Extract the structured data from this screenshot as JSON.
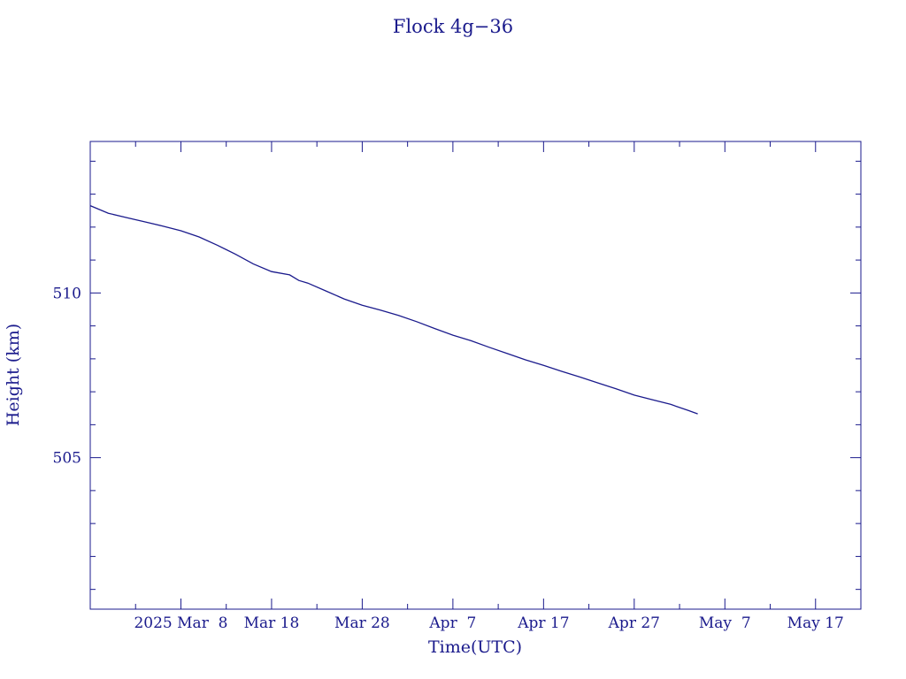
{
  "chart_data": {
    "type": "line",
    "title": "Flock 4g−36",
    "xlabel": "Time(UTC)",
    "ylabel": "Height (km)",
    "x_ticks": [
      "2025 Mar  8",
      "Mar 18",
      "Mar 28",
      "Apr  7",
      "Apr 17",
      "Apr 27",
      "May  7",
      "May 17"
    ],
    "x_tick_dates": [
      "2025-03-08",
      "2025-03-18",
      "2025-03-28",
      "2025-04-07",
      "2025-04-17",
      "2025-04-27",
      "2025-05-07",
      "2025-05-17"
    ],
    "xlim": [
      "2025-02-26",
      "2025-05-22"
    ],
    "y_ticks": [
      "505",
      "510"
    ],
    "y_tick_values": [
      505,
      510
    ],
    "ylim": [
      500.4,
      514.6
    ],
    "grid": false,
    "color": "#1a1a8c",
    "series": [
      {
        "x": [
          "2025-02-26",
          "2025-02-28",
          "2025-03-02",
          "2025-03-04",
          "2025-03-06",
          "2025-03-08",
          "2025-03-10",
          "2025-03-12",
          "2025-03-14",
          "2025-03-16",
          "2025-03-18",
          "2025-03-20",
          "2025-03-21",
          "2025-03-22",
          "2025-03-24",
          "2025-03-26",
          "2025-03-28",
          "2025-03-30",
          "2025-04-01",
          "2025-04-03",
          "2025-04-05",
          "2025-04-07",
          "2025-04-09",
          "2025-04-11",
          "2025-04-13",
          "2025-04-15",
          "2025-04-17",
          "2025-04-19",
          "2025-04-21",
          "2025-04-23",
          "2025-04-25",
          "2025-04-27",
          "2025-04-29",
          "2025-05-01",
          "2025-05-03",
          "2025-05-04"
        ],
        "values": [
          512.65,
          512.42,
          512.29,
          512.16,
          512.03,
          511.89,
          511.7,
          511.45,
          511.18,
          510.88,
          510.65,
          510.55,
          510.38,
          510.3,
          510.06,
          509.82,
          509.63,
          509.48,
          509.32,
          509.13,
          508.92,
          508.72,
          508.55,
          508.35,
          508.16,
          507.97,
          507.8,
          507.62,
          507.45,
          507.27,
          507.09,
          506.9,
          506.76,
          506.62,
          506.43,
          506.33
        ]
      }
    ]
  }
}
